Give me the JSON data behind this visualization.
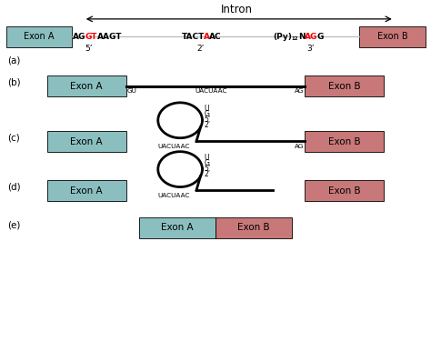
{
  "exon_a_color": "#8BBFBF",
  "exon_b_color": "#C87878",
  "bg_color": "#ffffff",
  "intron_label": "Intron",
  "panel_a": {
    "label": "(a)",
    "exon_a_text": "Exon A",
    "exon_b_text": "Exon B",
    "prime5": "5’",
    "prime2": "2’",
    "prime3": "3’"
  },
  "panel_b": {
    "label": "(b)",
    "exon_a_text": "Exon A",
    "exon_b_text": "Exon B",
    "gu_label": "GU",
    "uacuaac_label": "UACUAAC",
    "ag_label": "AG"
  },
  "panel_c": {
    "label": "(c)",
    "exon_a_text": "Exon A",
    "exon_b_text": "Exon B",
    "u_label": "U",
    "g_label": "G",
    "prime5": "5’",
    "prime2": "2’",
    "uacuaac_label": "UACUAAC",
    "ag_label": "AG"
  },
  "panel_d": {
    "label": "(d)",
    "exon_a_text": "Exon A",
    "exon_b_text": "Exon B",
    "u_label": "U",
    "g_label": "G",
    "prime5": "5’",
    "prime2": "2’",
    "uacuaac_label": "UACUAAC"
  },
  "panel_e": {
    "label": "(e)",
    "exon_a_text": "Exon A",
    "exon_b_text": "Exon B"
  }
}
